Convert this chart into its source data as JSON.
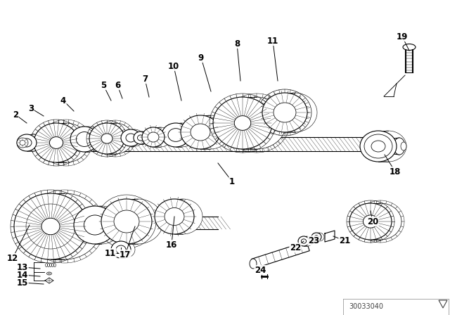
{
  "background_color": "#ffffff",
  "line_color": "#000000",
  "fig_width": 6.4,
  "fig_height": 4.48,
  "dpi": 100,
  "watermark": "30033040",
  "labels": [
    [
      1,
      330,
      258,
      310,
      232
    ],
    [
      2,
      22,
      163,
      38,
      175
    ],
    [
      3,
      44,
      154,
      62,
      165
    ],
    [
      4,
      90,
      143,
      105,
      158
    ],
    [
      5,
      147,
      121,
      158,
      143
    ],
    [
      6,
      167,
      121,
      174,
      140
    ],
    [
      7,
      206,
      112,
      212,
      138
    ],
    [
      8,
      337,
      62,
      342,
      115
    ],
    [
      9,
      286,
      82,
      300,
      130
    ],
    [
      10,
      247,
      94,
      258,
      143
    ],
    [
      11,
      388,
      58,
      395,
      115
    ],
    [
      12,
      18,
      367,
      42,
      320
    ],
    [
      13,
      32,
      380,
      57,
      382
    ],
    [
      14,
      32,
      391,
      57,
      393
    ],
    [
      15,
      32,
      402,
      62,
      404
    ],
    [
      16,
      244,
      348,
      248,
      308
    ],
    [
      17,
      178,
      362,
      192,
      322
    ],
    [
      18,
      562,
      244,
      547,
      220
    ],
    [
      19,
      572,
      52,
      582,
      72
    ],
    [
      20,
      530,
      315,
      527,
      300
    ],
    [
      21,
      490,
      342,
      474,
      336
    ],
    [
      22,
      420,
      352,
      432,
      343
    ],
    [
      23,
      446,
      342,
      454,
      336
    ],
    [
      24,
      370,
      384,
      374,
      386
    ]
  ]
}
